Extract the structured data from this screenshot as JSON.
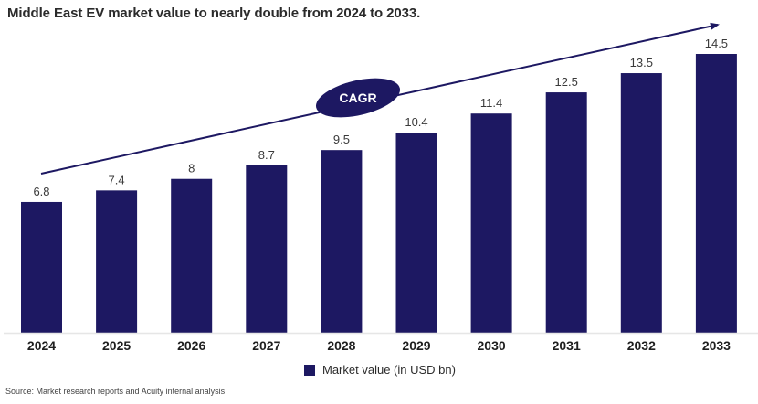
{
  "title": "Middle East EV market value to nearly double from 2024 to 2033.",
  "source": "Source: Market research reports and Acuity internal analysis",
  "colors": {
    "bar": "#1d1862",
    "text": "#2b2b2b",
    "axis": "#e6e6e6"
  },
  "chart_data": {
    "type": "bar",
    "title": "Middle East EV market value to nearly double from 2024 to 2033.",
    "categories": [
      "2024",
      "2025",
      "2026",
      "2027",
      "2028",
      "2029",
      "2030",
      "2031",
      "2032",
      "2033"
    ],
    "series": [
      {
        "name": "Market value (in USD bn)",
        "values": [
          6.8,
          7.4,
          8,
          8.7,
          9.5,
          10.4,
          11.4,
          12.5,
          13.5,
          14.5
        ]
      }
    ],
    "data_labels": [
      "6.8",
      "7.4",
      "8",
      "8.7",
      "9.5",
      "10.4",
      "11.4",
      "12.5",
      "13.5",
      "14.5"
    ],
    "xlabel": "",
    "ylabel": "",
    "ylim": [
      0,
      14.5
    ],
    "grid": false,
    "legend": {
      "position": "bottom-center",
      "entries": [
        "Market value (in USD bn)"
      ]
    },
    "annotations": [
      {
        "type": "trend-arrow",
        "label": "CAGR"
      }
    ]
  }
}
